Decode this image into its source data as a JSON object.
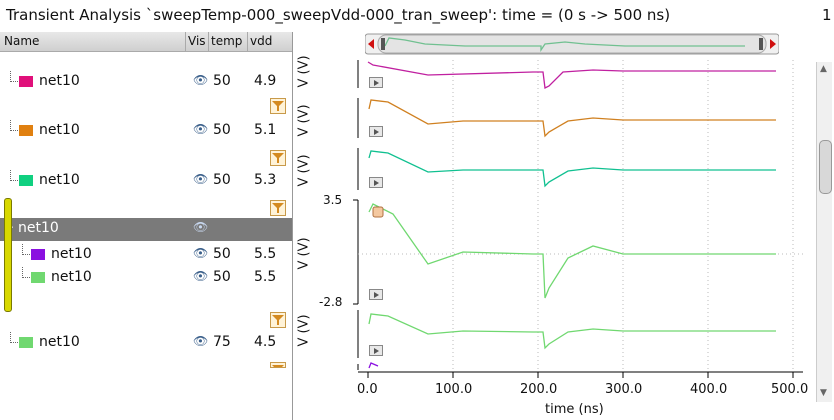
{
  "window": {
    "title": "Transient Analysis `sweepTemp-000_sweepVdd-000_tran_sweep': time = (0 s -> 500 ns)",
    "title_right": "1"
  },
  "table": {
    "headers": {
      "name": "Name",
      "vis": "Vis",
      "temp": "temp",
      "vdd": "vdd"
    },
    "rows": [
      {
        "name": "net10",
        "color": "#e0107a",
        "temp": "50",
        "vdd": "4.9"
      },
      {
        "name": "net10",
        "color": "#e08010",
        "temp": "50",
        "vdd": "5.1"
      },
      {
        "name": "net10",
        "color": "#10d080",
        "temp": "50",
        "vdd": "5.3"
      }
    ],
    "group": {
      "name": "net10"
    },
    "group_rows": [
      {
        "name": "net10",
        "color": "#8a10e0",
        "temp": "50",
        "vdd": "5.5"
      },
      {
        "name": "net10",
        "color": "#70d870",
        "temp": "50",
        "vdd": "5.5"
      }
    ],
    "last_row": {
      "name": "net10",
      "color": "#70d870",
      "temp": "75",
      "vdd": "4.5"
    }
  },
  "plot": {
    "ylabel": "V (V)",
    "axis_top": "3.5",
    "axis_bottom": "-2.8",
    "xlabel": "time (ns)",
    "xticks": [
      "0.0",
      "100.0",
      "200.0",
      "300.0",
      "400.0",
      "500.0"
    ],
    "trace_colors": [
      "#c020a0",
      "#d08020",
      "#10c090",
      "#70d870",
      "#70d870"
    ]
  },
  "icons": {
    "visibility": "eye-icon",
    "filter": "funnel-icon",
    "play": "play-icon"
  }
}
